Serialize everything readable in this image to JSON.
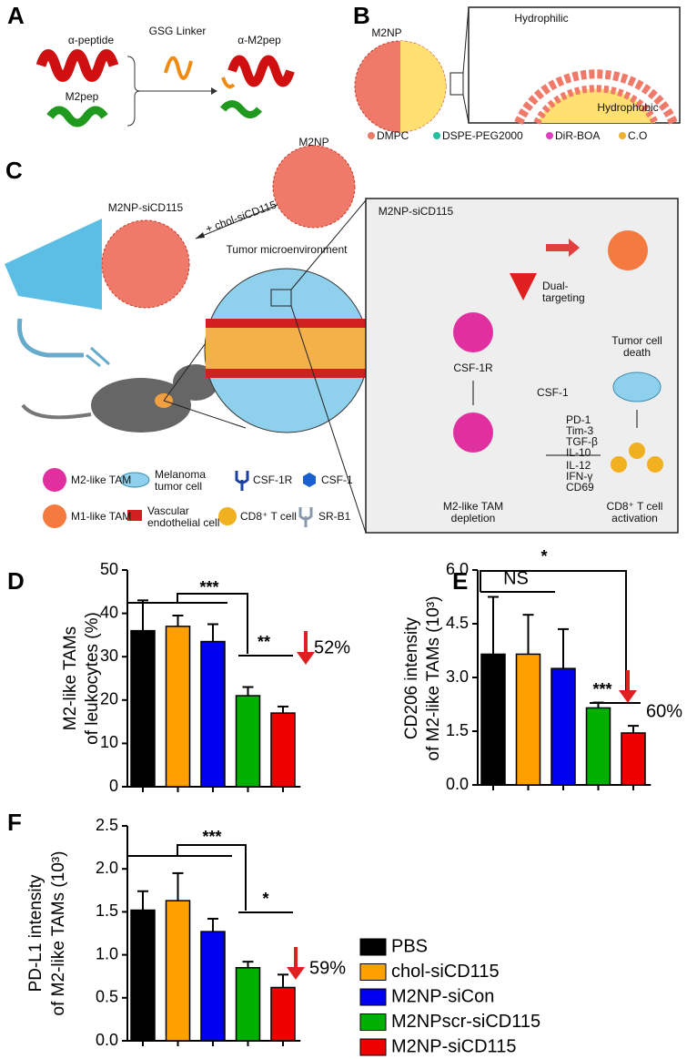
{
  "figure_a": {
    "label": "A",
    "alpha_peptide": "α-peptide",
    "linker": "GSG Linker",
    "product": "α-M2pep",
    "m2pep": "M2pep"
  },
  "figure_b": {
    "label": "B",
    "particle": "M2NP",
    "hydrophilic": "Hydrophilic",
    "hydrophobic": "Hydrophobic",
    "components": [
      "DMPC",
      "DSPE-PEG2000",
      "DiR-BOA",
      "C.O"
    ]
  },
  "figure_c": {
    "label": "C",
    "particle": "M2NP",
    "loaded": "M2NP-siCD115",
    "addition": "+ chol-siCD115",
    "tme": "Tumor microenvironment",
    "key": [
      "M2-like TAM",
      "Melanoma tumor cell",
      "CSF-1R",
      "CSF-1",
      "M1-like TAM",
      "Vascular endothelial cell",
      "CD8⁺ T cell",
      "SR-B1"
    ],
    "mechanism": {
      "agent": "M2NP-siCD115",
      "dual": "Dual-targeting",
      "receptor": "CSF-1R",
      "ligand": "CSF-1",
      "death": "Tumor cell death",
      "down_markers": [
        "PD-1",
        "Tim-3",
        "TGF-β",
        "IL-10"
      ],
      "up_markers": [
        "IL-12",
        "IFN-γ",
        "CD69"
      ],
      "depletion": "M2-like TAM depletion",
      "activation": "CD8⁺ T cell activation"
    }
  },
  "chart_data": [
    {
      "type": "bar",
      "panel": "D",
      "ylabel": [
        "M2-like TAMs",
        "of leukocytes (%)"
      ],
      "values": [
        36,
        37,
        33.5,
        21,
        17
      ],
      "errors": [
        7,
        2.5,
        4,
        2,
        1.5
      ],
      "ylim": [
        0,
        50
      ],
      "yticks": [
        0,
        10,
        20,
        30,
        40,
        50
      ],
      "group_sig": "***",
      "pair_sig": "**",
      "reduction": "52%"
    },
    {
      "type": "bar",
      "panel": "E",
      "ylabel": [
        "CD206 intensity",
        "of M2-like TAMs (10³)"
      ],
      "values": [
        3.65,
        3.65,
        3.25,
        2.15,
        1.45
      ],
      "errors": [
        1.6,
        1.1,
        1.1,
        0.15,
        0.2
      ],
      "ylim": [
        0,
        6
      ],
      "yticks": [
        {
          "value": 0,
          "label": "0.0"
        },
        {
          "value": 1.5,
          "label": "1.5"
        },
        {
          "value": 3,
          "label": "3.0"
        },
        {
          "value": 4.5,
          "label": "4.5"
        },
        {
          "value": 6,
          "label": "6.0"
        }
      ],
      "ns": "NS",
      "group_sig": "*",
      "pair_sig": "***",
      "reduction": "60%"
    },
    {
      "type": "bar",
      "panel": "F",
      "ylabel": [
        "PD-L1 intensity",
        "of M2-like TAMs (10³)"
      ],
      "values": [
        1.52,
        1.63,
        1.27,
        0.85,
        0.62
      ],
      "errors": [
        0.22,
        0.32,
        0.15,
        0.07,
        0.15
      ],
      "ylim": [
        0,
        2.5
      ],
      "yticks": [
        {
          "value": 0,
          "label": "0.0"
        },
        0.5,
        {
          "value": 1,
          "label": "1.0"
        },
        1.5,
        {
          "value": 2,
          "label": "2.0"
        },
        2.5
      ],
      "group_sig": "***",
      "pair_sig": "*",
      "reduction": "59%"
    }
  ],
  "legend": {
    "entries": [
      {
        "name": "PBS",
        "color": "#000000"
      },
      {
        "name": "chol-siCD115",
        "color": "#ffa000"
      },
      {
        "name": "M2NP-siCon",
        "color": "#0000f0"
      },
      {
        "name": "M2NPscr-siCD115",
        "color": "#00b000"
      },
      {
        "name": "M2NP-siCD115",
        "color": "#ee0000"
      }
    ]
  }
}
